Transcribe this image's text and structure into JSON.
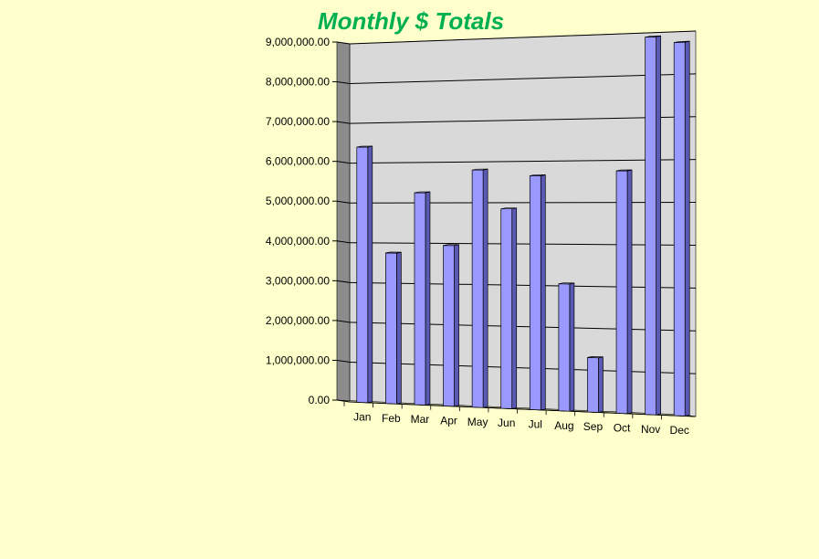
{
  "chart_data": {
    "type": "bar",
    "title": "Monthly $ Totals",
    "xlabel": "",
    "ylabel": "",
    "categories": [
      "Jan",
      "Feb",
      "Mar",
      "Apr",
      "May",
      "Jun",
      "Jul",
      "Aug",
      "Sep",
      "Oct",
      "Nov",
      "Dec"
    ],
    "values": [
      6400000,
      3750000,
      5250000,
      3950000,
      5800000,
      4850000,
      5650000,
      3050000,
      1300000,
      5750000,
      8900000,
      8750000
    ],
    "ylim": [
      0,
      9000000
    ],
    "yticks": [
      "0.00",
      "1,000,000.00",
      "2,000,000.00",
      "3,000,000.00",
      "4,000,000.00",
      "5,000,000.00",
      "6,000,000.00",
      "7,000,000.00",
      "8,000,000.00",
      "9,000,000.00"
    ],
    "grid": true,
    "legend": "none",
    "colors": {
      "background": "#FFFFCC",
      "plot_wall": "#D9D9D9",
      "side_wall": "#8C8C8C",
      "floor": "#C8C89A",
      "bar_front": "#9999FF",
      "bar_side": "#5A5AB4",
      "bar_top": "#B8B8FF",
      "title": "#00B050"
    }
  }
}
